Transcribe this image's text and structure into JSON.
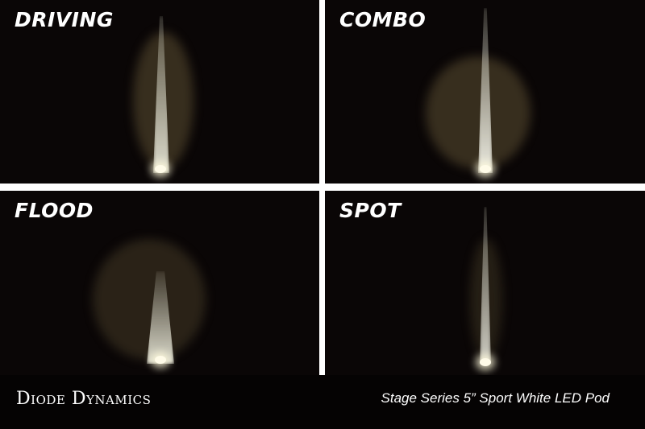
{
  "panels": [
    {
      "label": "DRIVING"
    },
    {
      "label": "COMBO"
    },
    {
      "label": "FLOOD"
    },
    {
      "label": "SPOT"
    }
  ],
  "footer": {
    "brand": "Diode Dynamics",
    "product": "Stage Series 5” Sport White LED Pod"
  }
}
